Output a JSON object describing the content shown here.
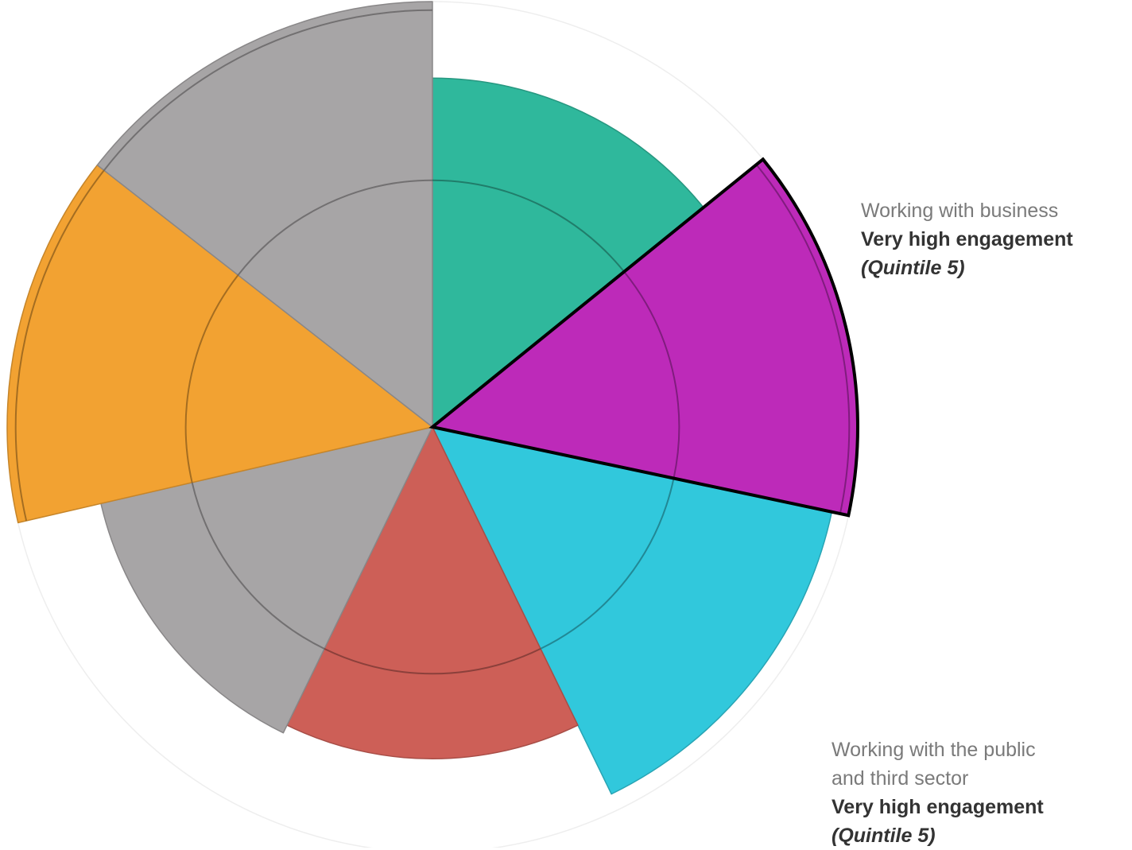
{
  "chart_data": {
    "type": "polar-area",
    "unit": "quintile",
    "rmax": 5,
    "start_angle_deg": 0,
    "direction": "clockwise",
    "segments": [
      {
        "id": "teal",
        "value": 4.1,
        "color": "#2fb89c",
        "start_deg": 0,
        "end_deg": 51,
        "highlight": false
      },
      {
        "id": "purple",
        "value": 5.0,
        "color": "#bd2ab9",
        "start_deg": 51,
        "end_deg": 102,
        "highlight": true
      },
      {
        "id": "cyan",
        "value": 4.8,
        "color": "#31c8dc",
        "start_deg": 102,
        "end_deg": 154,
        "highlight": false
      },
      {
        "id": "red",
        "value": 3.9,
        "color": "#cd5f57",
        "start_deg": 154,
        "end_deg": 206,
        "highlight": false
      },
      {
        "id": "grey-1",
        "value": 4.0,
        "color": "#a7a5a6",
        "start_deg": 206,
        "end_deg": 257,
        "highlight": false
      },
      {
        "id": "orange",
        "value": 5.0,
        "color": "#f2a232",
        "start_deg": 257,
        "end_deg": 308,
        "highlight": false
      },
      {
        "id": "grey-2",
        "value": 5.0,
        "color": "#a7a5a6",
        "start_deg": 308,
        "end_deg": 360,
        "highlight": false
      }
    ],
    "reference_rings": [
      2.9,
      4.9
    ],
    "annotations": [
      {
        "id": "business",
        "lines": [
          "Working with business"
        ],
        "level": "Very high engagement",
        "quintile": "(Quintile 5)"
      },
      {
        "id": "public",
        "lines": [
          "Working with the public",
          "and third sector"
        ],
        "level": "Very high engagement",
        "quintile": "(Quintile 5)"
      }
    ]
  }
}
